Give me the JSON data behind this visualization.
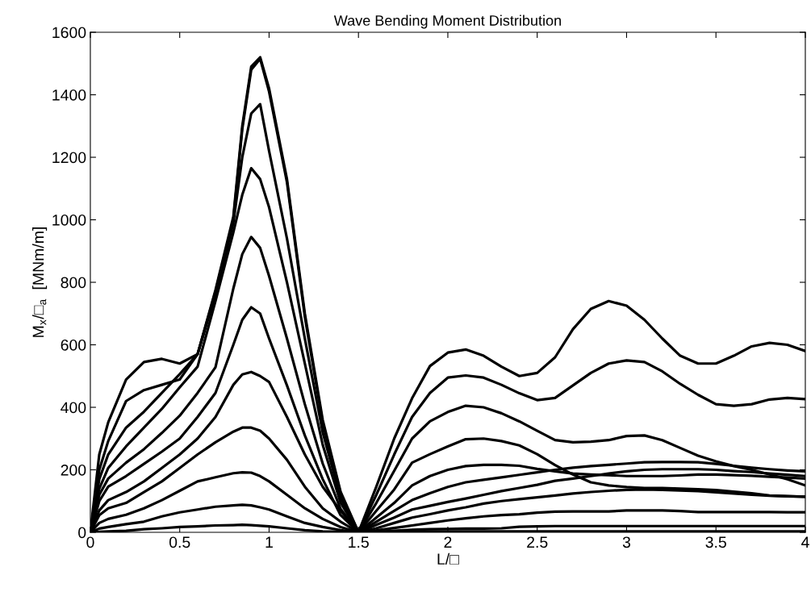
{
  "chart_data": {
    "type": "line",
    "title": "Wave Bending Moment Distribution",
    "xlabel": "L/□",
    "ylabel": "M$_{x}$/□$_{a}$  [MNm/m]",
    "x": [
      0,
      0.05,
      0.1,
      0.2,
      0.3,
      0.4,
      0.5,
      0.6,
      0.7,
      0.8,
      0.85,
      0.9,
      0.95,
      1.0,
      1.1,
      1.2,
      1.3,
      1.4,
      1.5,
      1.6,
      1.7,
      1.8,
      1.9,
      2.0,
      2.1,
      2.2,
      2.3,
      2.4,
      2.5,
      2.6,
      2.7,
      2.8,
      2.9,
      3.0,
      3.1,
      3.2,
      3.3,
      3.4,
      3.5,
      3.6,
      3.7,
      3.8,
      3.9,
      4.0
    ],
    "series": [
      {
        "color": "#000000",
        "values": [
          0,
          249,
          352,
          489,
          545,
          555,
          540,
          570,
          770,
          1000,
          1290,
          1480,
          1515,
          1410,
          1120,
          690,
          350,
          125,
          0,
          146,
          300,
          429,
          532,
          575,
          585,
          565,
          530,
          500,
          510,
          560,
          650,
          715,
          740,
          725,
          680,
          620,
          565,
          540,
          540,
          565,
          595,
          606,
          600,
          580
        ]
      },
      {
        "color": "#000000",
        "values": [
          0,
          200,
          292,
          420,
          455,
          472,
          489,
          570,
          775,
          1010,
          1300,
          1490,
          1520,
          1420,
          1130,
          700,
          360,
          130,
          0,
          120,
          249,
          369,
          446,
          495,
          502,
          495,
          472,
          445,
          423,
          430,
          470,
          510,
          540,
          550,
          545,
          515,
          475,
          440,
          410,
          405,
          410,
          425,
          430,
          426
        ]
      },
      {
        "color": "#000000",
        "values": [
          0,
          170,
          249,
          335,
          386,
          446,
          506,
          570,
          760,
          990,
          1200,
          1340,
          1370,
          1220,
          940,
          620,
          320,
          110,
          0,
          94,
          197,
          300,
          355,
          385,
          405,
          400,
          381,
          355,
          325,
          295,
          288,
          290,
          295,
          308,
          310,
          295,
          270,
          245,
          227,
          212,
          200,
          185,
          170,
          150
        ]
      },
      {
        "color": "#000000",
        "values": [
          0,
          140,
          206,
          275,
          335,
          395,
          464,
          530,
          740,
          960,
          1080,
          1165,
          1130,
          1040,
          800,
          540,
          280,
          95,
          0,
          69,
          137,
          223,
          250,
          275,
          298,
          300,
          292,
          278,
          250,
          215,
          185,
          160,
          150,
          145,
          142,
          142,
          140,
          138,
          135,
          130,
          125,
          118,
          116,
          114
        ]
      },
      {
        "color": "#000000",
        "values": [
          0,
          120,
          172,
          223,
          266,
          318,
          373,
          446,
          528,
          780,
          890,
          945,
          910,
          820,
          620,
          410,
          220,
          75,
          0,
          47,
          94,
          150,
          180,
          200,
          212,
          216,
          216,
          213,
          203,
          195,
          188,
          185,
          183,
          180,
          180,
          180,
          182,
          185,
          185,
          183,
          181,
          178,
          175,
          172
        ]
      },
      {
        "color": "#000000",
        "values": [
          0,
          100,
          146,
          180,
          219,
          258,
          300,
          369,
          446,
          600,
          680,
          720,
          700,
          620,
          470,
          310,
          170,
          55,
          0,
          34,
          69,
          103,
          125,
          145,
          160,
          168,
          176,
          184,
          192,
          200,
          207,
          212,
          216,
          220,
          224,
          225,
          225,
          224,
          219,
          213,
          207,
          202,
          198,
          195
        ]
      },
      {
        "color": "#000000",
        "values": [
          0,
          70,
          103,
          129,
          163,
          206,
          249,
          300,
          369,
          472,
          505,
          513,
          500,
          481,
          369,
          249,
          146,
          69,
          0,
          24,
          47,
          73,
          85,
          97,
          108,
          120,
          132,
          142,
          152,
          165,
          172,
          180,
          188,
          195,
          200,
          202,
          202,
          202,
          200,
          196,
          193,
          188,
          184,
          180
        ]
      },
      {
        "color": "#000000",
        "values": [
          0,
          55,
          77,
          94,
          129,
          163,
          206,
          249,
          288,
          322,
          335,
          335,
          325,
          300,
          232,
          146,
          77,
          34,
          0,
          13,
          30,
          47,
          58,
          70,
          80,
          92,
          100,
          106,
          112,
          118,
          124,
          129,
          133,
          136,
          137,
          136,
          134,
          132,
          128,
          124,
          120,
          117,
          115,
          114
        ]
      },
      {
        "color": "#000000",
        "values": [
          0,
          30,
          43,
          56,
          77,
          103,
          133,
          163,
          176,
          189,
          192,
          191,
          180,
          163,
          120,
          77,
          43,
          17,
          0,
          6,
          14,
          22,
          30,
          38,
          45,
          51,
          55,
          58,
          63,
          66,
          67,
          67,
          67,
          70,
          70,
          70,
          68,
          65,
          65,
          65,
          65,
          65,
          64,
          64
        ]
      },
      {
        "color": "#000000",
        "values": [
          0,
          12,
          17,
          26,
          34,
          51,
          64,
          73,
          82,
          86,
          88,
          86,
          80,
          73,
          51,
          30,
          17,
          7,
          0,
          2,
          5,
          8,
          10,
          11,
          12,
          12,
          13,
          18,
          19,
          20,
          20,
          20,
          20,
          20,
          20,
          20,
          20,
          20,
          20,
          20,
          20,
          20,
          20,
          20
        ]
      },
      {
        "color": "#000000",
        "values": [
          0,
          2,
          3,
          5,
          10,
          13,
          17,
          19,
          22,
          23,
          24,
          23,
          21,
          19,
          13,
          7,
          3,
          2,
          0,
          1,
          2,
          2,
          3,
          3,
          3,
          3,
          3,
          3,
          3,
          3,
          3,
          3,
          3,
          3,
          3,
          3,
          3,
          3,
          3,
          3,
          3,
          3,
          3,
          3
        ]
      }
    ],
    "xlim": [
      0,
      4
    ],
    "ylim": [
      0,
      1600
    ],
    "xticks": [
      0,
      0.5,
      1,
      1.5,
      2,
      2.5,
      3,
      3.5,
      4
    ],
    "yticks": [
      0,
      200,
      400,
      600,
      800,
      1000,
      1200,
      1400,
      1600
    ],
    "grid": false,
    "legend": false,
    "marker": "none",
    "line_style": "solid"
  }
}
